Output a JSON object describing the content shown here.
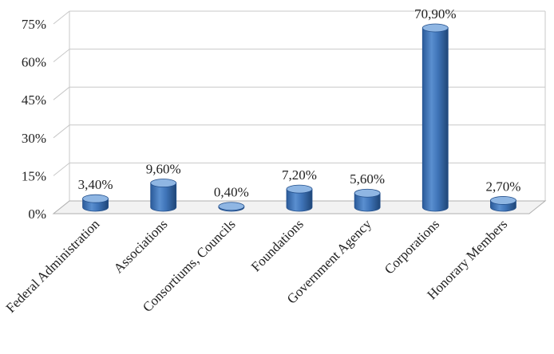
{
  "chart_data": {
    "type": "bar",
    "categories": [
      "Federal Administration",
      "Associations",
      "Consortiums, Councils",
      "Foundations",
      "Government Agency",
      "Corporations",
      "Honorary Members"
    ],
    "values": [
      3.4,
      9.6,
      0.4,
      7.2,
      5.6,
      70.9,
      2.7
    ],
    "data_labels": [
      "3,40%",
      "9,60%",
      "0,40%",
      "7,20%",
      "5,60%",
      "70,90%",
      "2,70%"
    ],
    "yticks": [
      "0%",
      "15%",
      "30%",
      "45%",
      "60%",
      "75%"
    ],
    "ylim": [
      0,
      75
    ],
    "grid": true,
    "style": "3d-cylinder",
    "colors": {
      "bar": "#3f74b8",
      "bar_dark": "#24508c",
      "bar_light": "#8fb6e3",
      "grid": "#c8c8c8"
    }
  }
}
